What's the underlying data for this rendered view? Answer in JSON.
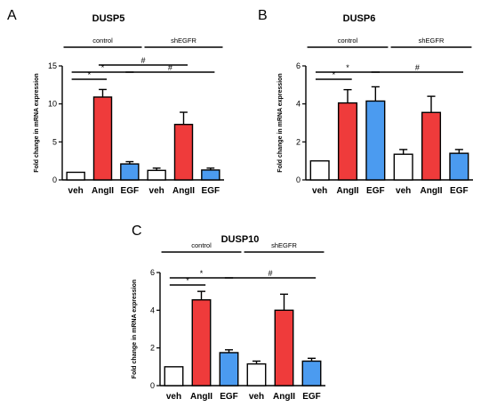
{
  "chart_data": [
    {
      "type": "bar",
      "panel": "A",
      "title": "DUSP5",
      "ylabel": "Fold change in mRNA expression",
      "xlabel": "",
      "ylim": [
        0,
        15
      ],
      "yticks": [
        0,
        5,
        10,
        15
      ],
      "categories": [
        "veh",
        "AngII",
        "EGF",
        "veh",
        "AngII",
        "EGF"
      ],
      "values": [
        1.0,
        10.9,
        2.1,
        1.25,
        7.3,
        1.3
      ],
      "errors": [
        0.0,
        1.0,
        0.3,
        0.3,
        1.6,
        0.25
      ],
      "colors": [
        "#ffffff",
        "#ef3b3b",
        "#4b9bf0",
        "#ffffff",
        "#ef3b3b",
        "#4b9bf0"
      ],
      "groups": [
        {
          "label": "control",
          "from": 0,
          "to": 2
        },
        {
          "label": "shEGFR",
          "from": 3,
          "to": 5
        }
      ],
      "significance": [
        {
          "from": 0,
          "to": 1,
          "label": "*",
          "level": 0
        },
        {
          "from": 0,
          "to": 2,
          "label": "*",
          "level": 1
        },
        {
          "from": 1,
          "to": 4,
          "label": "#",
          "level": 2
        },
        {
          "from": 2,
          "to": 5,
          "label": "#",
          "level": 1
        }
      ]
    },
    {
      "type": "bar",
      "panel": "B",
      "title": "DUSP6",
      "ylabel": "Fold change in mRNA expression",
      "xlabel": "",
      "ylim": [
        0,
        6
      ],
      "yticks": [
        0,
        2,
        4,
        6
      ],
      "categories": [
        "veh",
        "AngII",
        "EGF",
        "veh",
        "AngII",
        "EGF"
      ],
      "values": [
        1.0,
        4.05,
        4.15,
        1.35,
        3.55,
        1.4
      ],
      "errors": [
        0.0,
        0.7,
        0.75,
        0.25,
        0.85,
        0.2
      ],
      "colors": [
        "#ffffff",
        "#ef3b3b",
        "#4b9bf0",
        "#ffffff",
        "#ef3b3b",
        "#4b9bf0"
      ],
      "groups": [
        {
          "label": "control",
          "from": 0,
          "to": 2
        },
        {
          "label": "shEGFR",
          "from": 3,
          "to": 5
        }
      ],
      "significance": [
        {
          "from": 0,
          "to": 1,
          "label": "*",
          "level": 0
        },
        {
          "from": 0,
          "to": 2,
          "label": "*",
          "level": 1
        },
        {
          "from": 2,
          "to": 5,
          "label": "#",
          "level": 1
        }
      ]
    },
    {
      "type": "bar",
      "panel": "C",
      "title": "DUSP10",
      "ylabel": "Fold change in mRNA expression",
      "xlabel": "",
      "ylim": [
        0,
        6
      ],
      "yticks": [
        0,
        2,
        4,
        6
      ],
      "categories": [
        "veh",
        "AngII",
        "EGF",
        "veh",
        "AngII",
        "EGF"
      ],
      "values": [
        1.0,
        4.55,
        1.75,
        1.15,
        4.0,
        1.3
      ],
      "errors": [
        0.0,
        0.45,
        0.15,
        0.15,
        0.85,
        0.15
      ],
      "colors": [
        "#ffffff",
        "#ef3b3b",
        "#4b9bf0",
        "#ffffff",
        "#ef3b3b",
        "#4b9bf0"
      ],
      "groups": [
        {
          "label": "control",
          "from": 0,
          "to": 2
        },
        {
          "label": "shEGFR",
          "from": 3,
          "to": 5
        }
      ],
      "significance": [
        {
          "from": 0,
          "to": 1,
          "label": "*",
          "level": 0
        },
        {
          "from": 0,
          "to": 2,
          "label": "*",
          "level": 1
        },
        {
          "from": 2,
          "to": 5,
          "label": "#",
          "level": 1
        }
      ]
    }
  ]
}
